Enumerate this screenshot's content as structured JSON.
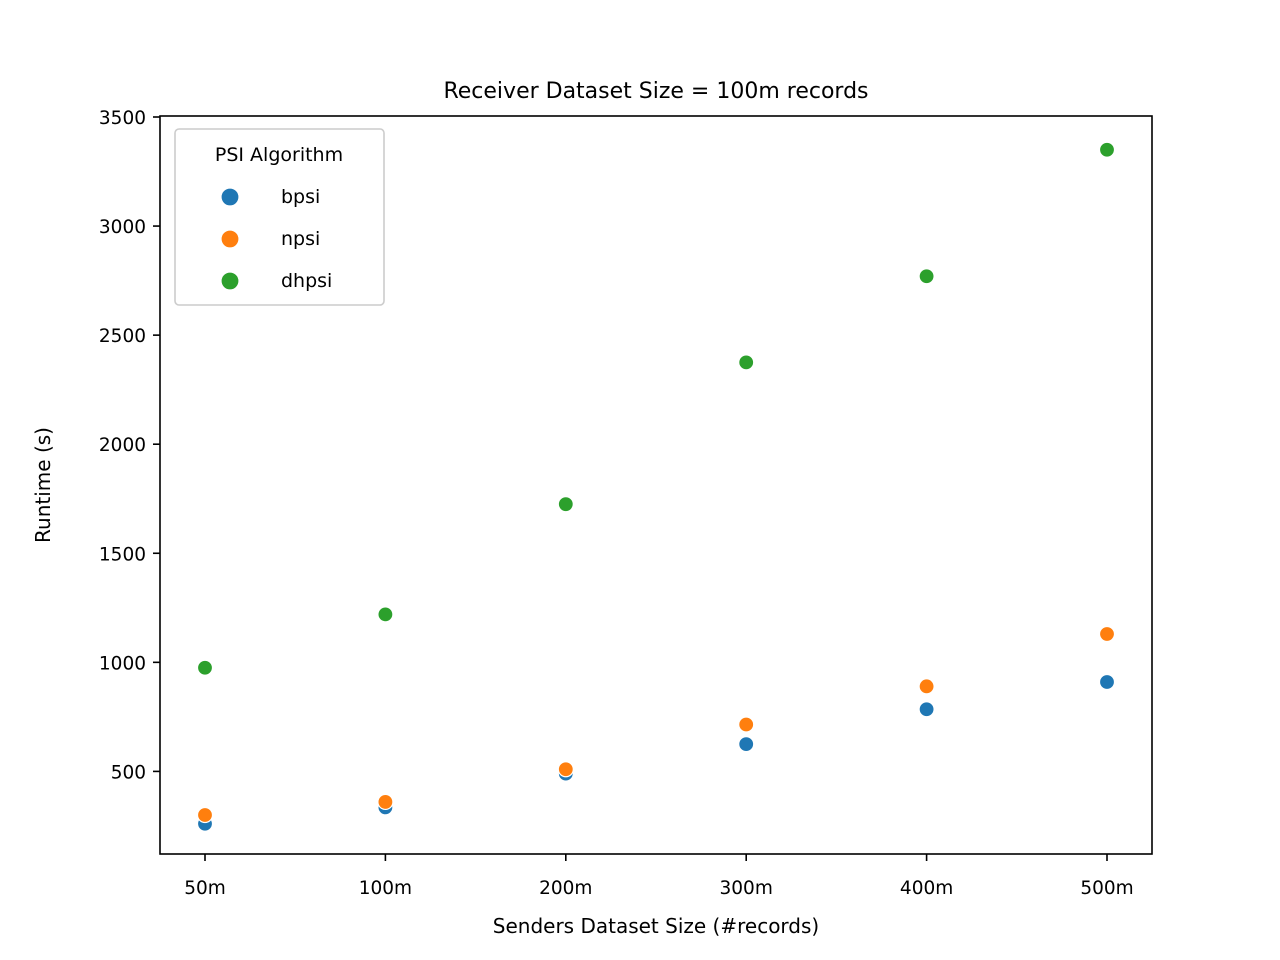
{
  "chart_data": {
    "type": "scatter",
    "title": "Receiver Dataset Size = 100m records",
    "xlabel": "Senders Dataset Size (#records)",
    "ylabel": "Runtime (s)",
    "categories": [
      "50m",
      "100m",
      "200m",
      "300m",
      "400m",
      "500m"
    ],
    "ylim": [
      100,
      3500
    ],
    "yticks": [
      500,
      1000,
      1500,
      2000,
      2500,
      3000,
      3500
    ],
    "grid": false,
    "legend": {
      "title": "PSI Algorithm",
      "placement": "top-left"
    },
    "series": [
      {
        "name": "bpsi",
        "color": "#1f77b4",
        "values": [
          260,
          335,
          490,
          625,
          785,
          910
        ]
      },
      {
        "name": "npsi",
        "color": "#ff7f0e",
        "values": [
          300,
          360,
          510,
          715,
          890,
          1130
        ]
      },
      {
        "name": "dhpsi",
        "color": "#2ca02c",
        "values": [
          975,
          1220,
          1725,
          2375,
          2770,
          3350
        ]
      }
    ]
  }
}
